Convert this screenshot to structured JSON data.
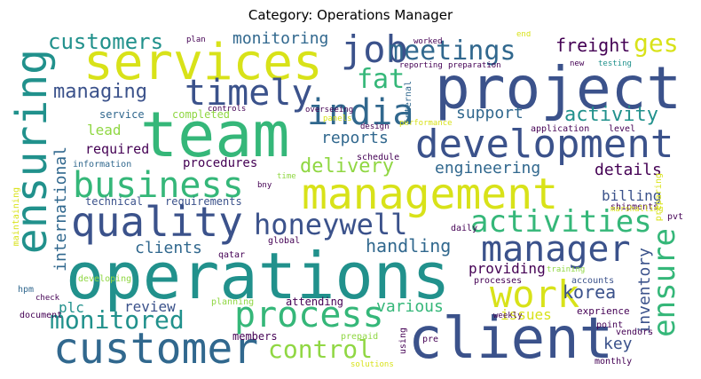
{
  "title": "Category: Operations Manager",
  "words": {
    "operations": "operations",
    "management": "management",
    "team": "team",
    "project": "project",
    "client": "client",
    "services": "services",
    "customer": "customer",
    "quality": "quality",
    "development": "development",
    "ensuring": "ensuring",
    "manager": "manager",
    "business": "business",
    "job": "job",
    "meetings": "meetings",
    "timely": "timely",
    "india": "india",
    "process": "process",
    "honeywell": "honeywell",
    "work": "work",
    "activities": "activities",
    "ensure": "ensure",
    "monitored": "monitored",
    "control": "control",
    "customers": "customers",
    "fat": "fat",
    "managing": "managing",
    "delivery": "delivery",
    "activity": "activity",
    "engineering": "engineering",
    "freight": "freight",
    "ges": "ges",
    "reports": "reports",
    "support": "support",
    "details": "details",
    "monitoring": "monitoring",
    "handling": "handling",
    "various": "various",
    "providing": "providing",
    "clients": "clients",
    "international": "international",
    "procedures": "procedures",
    "korea": "korea",
    "review": "review",
    "inventory": "inventory",
    "billing": "billing",
    "plc": "plc",
    "issues": "issues",
    "key": "key",
    "lead": "lead",
    "required": "required",
    "requirements": "requirements",
    "technical": "technical",
    "attending": "attending",
    "members": "members",
    "service": "service",
    "completed": "completed",
    "information": "information",
    "schedule": "schedule",
    "shipments": "shipments",
    "global": "global",
    "qatar": "qatar",
    "hpm": "hpm",
    "document": "document",
    "planning": "planning",
    "preparing": "preparing",
    "marshalling": "marshalling",
    "pvt": "pvt",
    "daily": "daily",
    "accounts": "accounts",
    "processes": "processes",
    "training": "training",
    "exprience": "exprience",
    "point": "point",
    "vendors": "vendors",
    "monthly": "monthly",
    "weekly": "weekly",
    "using": "using",
    "pre": "pre",
    "prepaid": "prepaid",
    "solutions": "solutions",
    "maintaining": "maintaining",
    "developing": "developing",
    "check": "check",
    "bny": "bny",
    "time": "time",
    "overseeing": "overseeing",
    "panels": "panels",
    "design": "design",
    "performance": "performance",
    "internal": "internal",
    "application": "application",
    "level": "level",
    "worked": "worked",
    "reporting": "reporting",
    "preparation": "preparation",
    "new": "new",
    "testing": "testing",
    "end": "end",
    "plan": "plan",
    "controls": "controls"
  },
  "colors": {
    "dark_purple": "#440154",
    "indigo": "#3b528b",
    "blue": "#31688e",
    "teal": "#21918c",
    "green": "#35b779",
    "lime": "#90d743",
    "yellow": "#d8e219"
  }
}
